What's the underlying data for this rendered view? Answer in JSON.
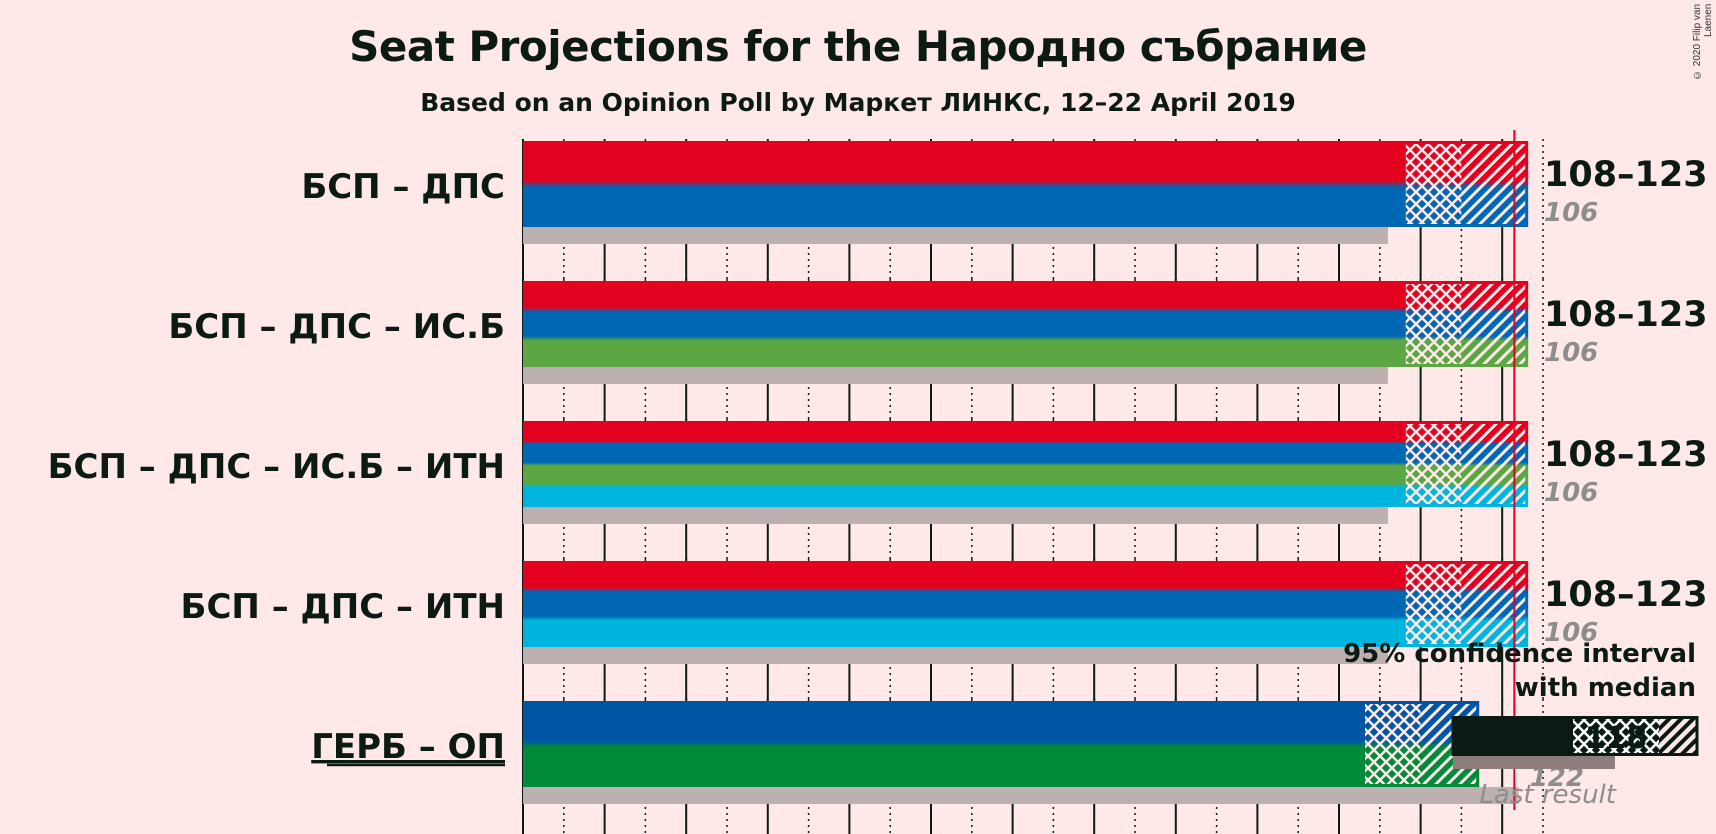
{
  "chart_data": {
    "type": "bar",
    "title": "Seat Projections for the Народно събрание",
    "subtitle": "Based on an Opinion Poll by Маркет ЛИНКС, 12–22 April 2019",
    "copyright": "© 2020 Filip van Laenen",
    "majority": 121,
    "xlim": [
      0,
      128
    ],
    "coalitions": [
      {
        "name": "БСП – ДПС",
        "low": 108,
        "median": 115,
        "high": 123,
        "range_label": "108–123",
        "last": 106,
        "last_label": "106",
        "underline": false,
        "colors": [
          "#e4001f",
          "#0067b4"
        ]
      },
      {
        "name": "БСП – ДПС – ИС.Б",
        "low": 108,
        "median": 115,
        "high": 123,
        "range_label": "108–123",
        "last": 106,
        "last_label": "106",
        "underline": false,
        "colors": [
          "#e4001f",
          "#0067b4",
          "#5ca744"
        ]
      },
      {
        "name": "БСП – ДПС – ИС.Б – ИТН",
        "low": 108,
        "median": 115,
        "high": 123,
        "range_label": "108–123",
        "last": 106,
        "last_label": "106",
        "underline": false,
        "colors": [
          "#e4001f",
          "#0067b4",
          "#5ca744",
          "#00b5dd"
        ]
      },
      {
        "name": "БСП – ДПС – ИТН",
        "low": 108,
        "median": 115,
        "high": 123,
        "range_label": "108–123",
        "last": 106,
        "last_label": "106",
        "underline": false,
        "colors": [
          "#e4001f",
          "#0067b4",
          "#00b5dd"
        ]
      },
      {
        "name": "ГЕРБ – ОП",
        "low": 103,
        "median": 110,
        "high": 117,
        "range_label": "",
        "last": 122,
        "last_label": "122",
        "underline": true,
        "colors": [
          "#0056a3",
          "#008a3a"
        ]
      }
    ],
    "legend": {
      "ci_label_line1": "95% confidence interval",
      "ci_label_line2": "with median",
      "median_label": "118",
      "last_result_label": "Last result"
    }
  }
}
